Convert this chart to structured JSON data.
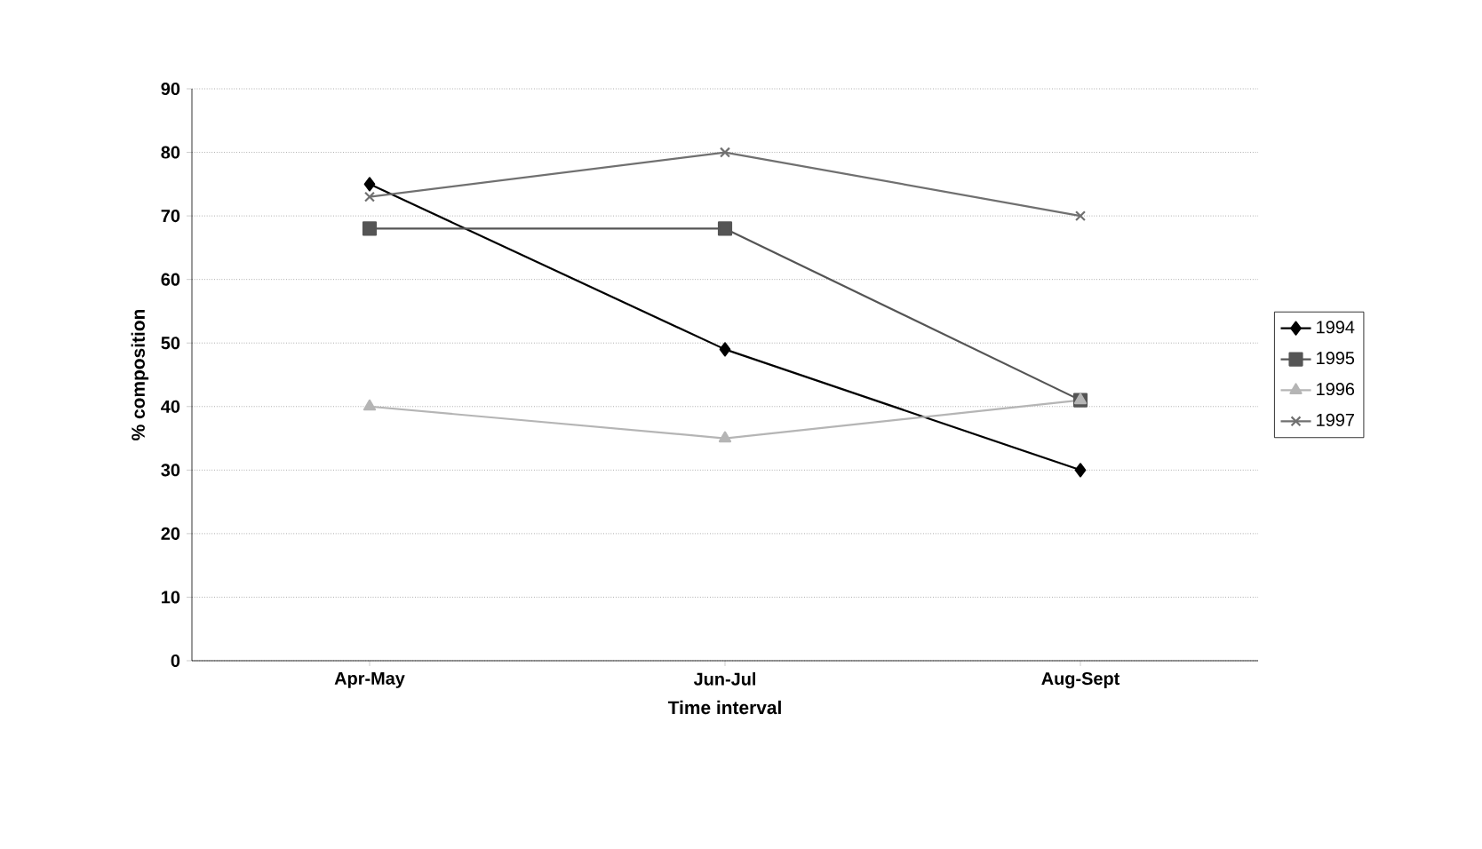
{
  "chart_data": {
    "type": "line",
    "xlabel": "Time interval",
    "ylabel": "% composition",
    "categories": [
      "Apr-May",
      "Jun-Jul",
      "Aug-Sept"
    ],
    "series": [
      {
        "name": "1994",
        "color": "#000000",
        "marker": "diamond",
        "values": [
          75,
          49,
          30
        ]
      },
      {
        "name": "1995",
        "color": "#555555",
        "marker": "square",
        "values": [
          68,
          68,
          41
        ]
      },
      {
        "name": "1996",
        "color": "#b5b5b5",
        "marker": "triangle",
        "values": [
          40,
          35,
          41
        ]
      },
      {
        "name": "1997",
        "color": "#707070",
        "marker": "cross",
        "values": [
          73,
          80,
          70
        ]
      }
    ],
    "ylim": [
      0,
      90
    ],
    "yticks": [
      0,
      10,
      20,
      30,
      40,
      50,
      60,
      70,
      80,
      90
    ],
    "grid": "y",
    "legend": "right",
    "line_style": "solid"
  }
}
